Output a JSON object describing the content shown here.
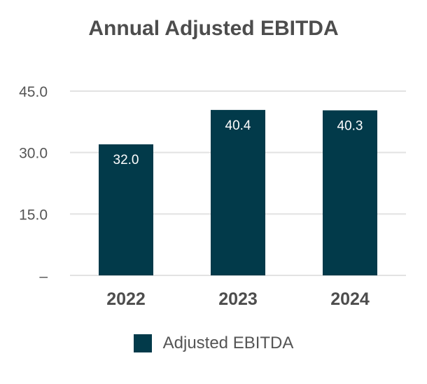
{
  "chart_data": {
    "type": "bar",
    "title": "Annual Adjusted EBITDA",
    "categories": [
      "2022",
      "2023",
      "2024"
    ],
    "series": [
      {
        "name": "Adjusted EBITDA",
        "values": [
          32.0,
          40.4,
          40.3
        ],
        "data_labels": [
          "32.0",
          "40.4",
          "40.3"
        ],
        "color": "#023a4a"
      }
    ],
    "ylim": [
      0,
      45
    ],
    "yticks": [
      0,
      15,
      30,
      45
    ],
    "ytick_labels": [
      "–",
      "15.0",
      "30.0",
      "45.0"
    ],
    "xlabel": "",
    "ylabel": "",
    "grid": true,
    "legend": "bottom-center"
  },
  "colors": {
    "bar": "#023a4a",
    "grid": "#e2e2e2",
    "axis_text": "#555555",
    "category_text": "#4d4d4d",
    "data_label": "#ffffff"
  }
}
